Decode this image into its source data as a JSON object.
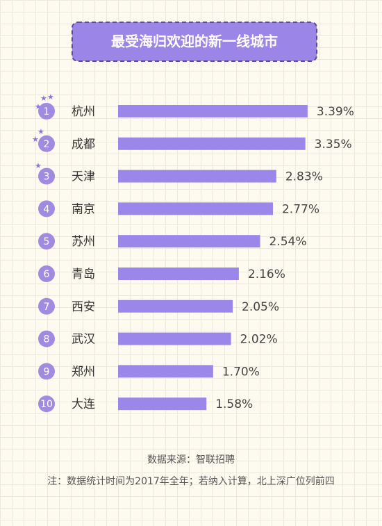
{
  "chart_data": {
    "type": "bar",
    "orientation": "horizontal",
    "title": "最受海归欢迎的新一线城市",
    "ranks": [
      "1",
      "2",
      "3",
      "4",
      "5",
      "6",
      "7",
      "8",
      "9",
      "10"
    ],
    "categories": [
      "杭州",
      "成都",
      "天津",
      "南京",
      "苏州",
      "青岛",
      "西安",
      "武汉",
      "郑州",
      "大连"
    ],
    "values": [
      3.39,
      3.35,
      2.83,
      2.77,
      2.54,
      2.16,
      2.05,
      2.02,
      1.7,
      1.58
    ],
    "value_labels": [
      "3.39%",
      "3.35%",
      "2.83%",
      "2.77%",
      "2.54%",
      "2.16%",
      "2.05%",
      "2.02%",
      "1.70%",
      "1.58%"
    ],
    "color": "#9b87ea",
    "source": "数据来源：智联招聘",
    "note": "注：数据统计时间为2017年全年；若纳入计算，北上深广位列前四"
  }
}
